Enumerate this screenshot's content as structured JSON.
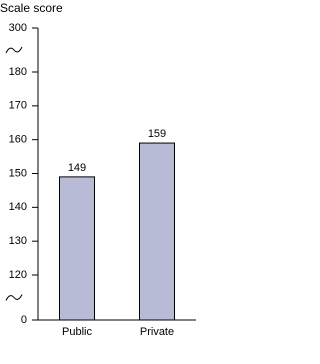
{
  "chart_data": {
    "type": "bar",
    "y_label": "Scale score",
    "categories": [
      "Public",
      "Private"
    ],
    "values": [
      149,
      159
    ],
    "color": "#b8bbd6",
    "ylim": [
      0,
      300
    ],
    "yticks": [
      0,
      120,
      130,
      140,
      150,
      160,
      170,
      180,
      300
    ],
    "broken_axis": true,
    "grid": false
  }
}
